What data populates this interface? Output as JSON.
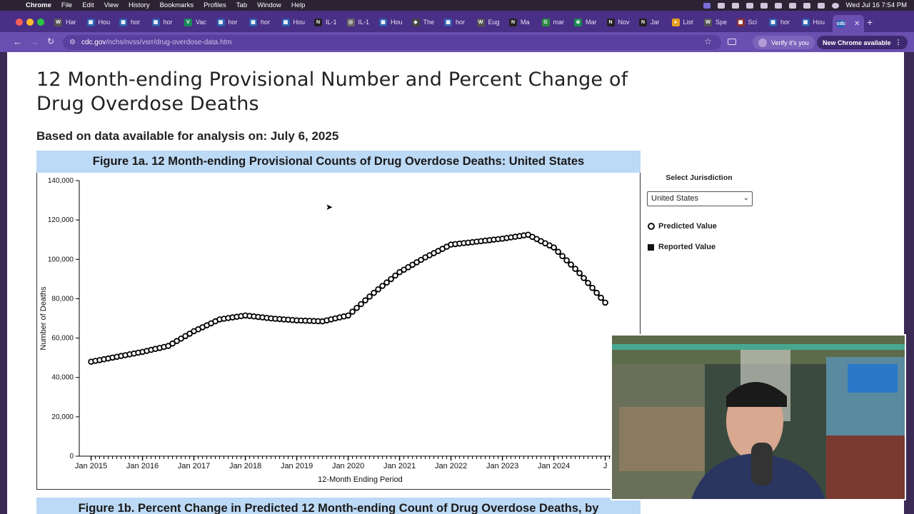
{
  "menubar": {
    "app": "Chrome",
    "items": [
      "File",
      "Edit",
      "View",
      "History",
      "Bookmarks",
      "Profiles",
      "Tab",
      "Window",
      "Help"
    ],
    "clock": "Wed Jul 16  7:54 PM"
  },
  "tabs": [
    {
      "label": "Har",
      "icon": "W"
    },
    {
      "label": "Hou",
      "icon": "▦"
    },
    {
      "label": "hor",
      "icon": "▦"
    },
    {
      "label": "hor",
      "icon": "▦"
    },
    {
      "label": "Vac",
      "icon": "V"
    },
    {
      "label": "hor",
      "icon": "▦"
    },
    {
      "label": "hor",
      "icon": "▦"
    },
    {
      "label": "Hou",
      "icon": "▦"
    },
    {
      "label": "IL-1",
      "icon": "N"
    },
    {
      "label": "IL-1",
      "icon": "◎"
    },
    {
      "label": "Hou",
      "icon": "▦"
    },
    {
      "label": "The",
      "icon": "◈"
    },
    {
      "label": "hor",
      "icon": "▦"
    },
    {
      "label": "Eug",
      "icon": "W"
    },
    {
      "label": "Ma",
      "icon": "N"
    },
    {
      "label": "mar",
      "icon": "G"
    },
    {
      "label": "Mar",
      "icon": "⊛"
    },
    {
      "label": "Nov",
      "icon": "N"
    },
    {
      "label": "Jar",
      "icon": "N"
    },
    {
      "label": "List",
      "icon": "●"
    },
    {
      "label": "Spe",
      "icon": "W"
    },
    {
      "label": "Sci",
      "icon": "▩"
    },
    {
      "label": "hor",
      "icon": "▦"
    },
    {
      "label": "Hou",
      "icon": "▦"
    }
  ],
  "toolbar": {
    "url_domain": "cdc.gov",
    "url_path": "/nchs/nvss/vsrr/drug-overdose-data.htm",
    "verify_label": "Verify it's you",
    "update_label": "New Chrome available"
  },
  "page": {
    "title": "12 Month-ending Provisional Number and Percent Change of Drug Overdose Deaths",
    "subtitle": "Based on data available for analysis on: July 6, 2025",
    "fig1a_title": "Figure 1a. 12 Month-ending Provisional Counts of Drug Overdose Deaths: United States",
    "fig1b_title": "Figure 1b. Percent Change in Predicted 12 Month-ending Count of Drug Overdose Deaths, by",
    "select_label": "Select Jurisdiction",
    "select_value": "United States",
    "legend_predicted": "Predicted Value",
    "legend_reported": "Reported Value"
  },
  "colors": {
    "menubar": "#2b2233",
    "tabstrip": "#4a2f86",
    "toolbar": "#6a4fb0",
    "figure_header": "#bcd9f5"
  },
  "chart_data": {
    "type": "line",
    "title": "",
    "xlabel": "12-Month Ending Period",
    "ylabel": "Number of Deaths",
    "ylim": [
      0,
      140000
    ],
    "yticks": [
      "0",
      "20,000",
      "40,000",
      "60,000",
      "80,000",
      "100,000",
      "120,000",
      "140,000"
    ],
    "xticks": [
      "Jan 2015",
      "Jan 2016",
      "Jan 2017",
      "Jan 2018",
      "Jan 2019",
      "Jan 2020",
      "Jan 2021",
      "Jan 2022",
      "Jan 2023",
      "Jan 2024",
      "J"
    ],
    "x_start": "Jan 2015",
    "points": [
      [
        2015.0,
        48000
      ],
      [
        2015.5,
        50500
      ],
      [
        2016.0,
        53000
      ],
      [
        2016.5,
        56000
      ],
      [
        2017.0,
        63500
      ],
      [
        2017.5,
        69500
      ],
      [
        2018.0,
        71500
      ],
      [
        2018.5,
        70000
      ],
      [
        2019.0,
        69000
      ],
      [
        2019.5,
        68500
      ],
      [
        2020.0,
        71500
      ],
      [
        2020.5,
        83000
      ],
      [
        2021.0,
        93500
      ],
      [
        2021.5,
        101000
      ],
      [
        2022.0,
        107500
      ],
      [
        2022.5,
        109000
      ],
      [
        2023.0,
        110500
      ],
      [
        2023.5,
        112500
      ],
      [
        2024.0,
        106000
      ],
      [
        2024.5,
        93000
      ],
      [
        2025.0,
        78000
      ]
    ],
    "series": [
      {
        "name": "Predicted Value",
        "marker": "open-circle"
      },
      {
        "name": "Reported Value",
        "marker": "filled-square"
      }
    ],
    "legend": "right",
    "grid": false
  }
}
